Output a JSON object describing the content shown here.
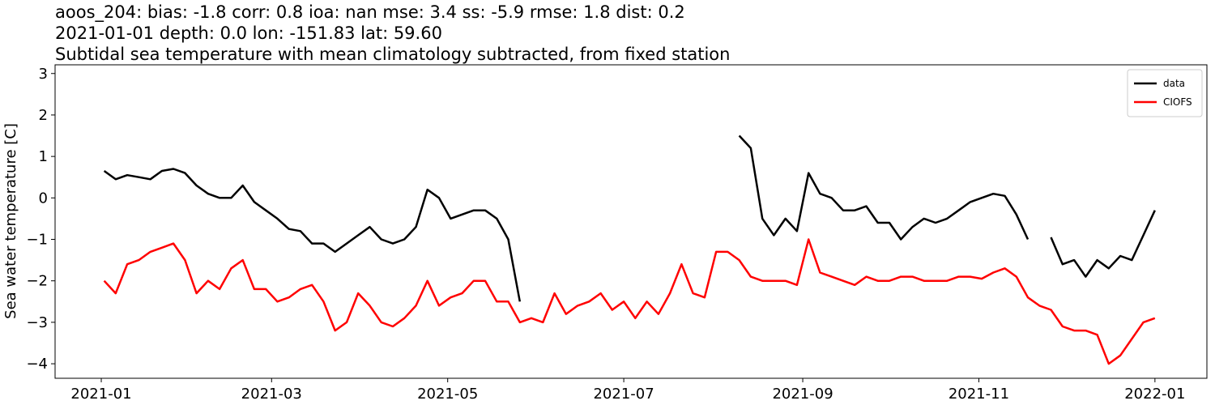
{
  "chart_data": {
    "type": "line",
    "title": "aoos_204: bias: -1.8  corr: 0.8  ioa: nan  mse: 3.4  ss: -5.9  rmse: 1.8  dist: 0.2",
    "subtitle": "2021-01-01 depth: 0.0 lon: -151.83 lat: 59.60",
    "description": "Subtidal sea temperature with mean climatology subtracted, from fixed station",
    "ylabel": "Sea water temperature [C]",
    "legend": "upper right",
    "x": [
      1,
      5,
      9,
      13,
      17,
      21,
      25,
      29,
      33,
      37,
      41,
      45,
      49,
      53,
      57,
      61,
      65,
      69,
      73,
      77,
      81,
      85,
      89,
      93,
      97,
      101,
      105,
      109,
      113,
      117,
      121,
      125,
      129,
      133,
      137,
      141,
      145,
      149,
      153,
      157,
      161,
      165,
      169,
      173,
      177,
      181,
      185,
      189,
      193,
      197,
      201,
      205,
      209,
      213,
      217,
      221,
      225,
      229,
      233,
      237,
      241,
      245,
      249,
      253,
      257,
      261,
      265,
      269,
      273,
      277,
      281,
      285,
      289,
      293,
      297,
      301,
      305,
      309,
      313,
      317,
      321,
      325,
      329,
      333,
      337,
      341,
      345,
      349,
      353,
      357,
      361,
      365
    ],
    "series": [
      {
        "name": "data",
        "color": "#000000",
        "values": [
          0.65,
          0.45,
          0.55,
          0.5,
          0.45,
          0.65,
          0.7,
          0.6,
          0.3,
          0.1,
          0.0,
          0.0,
          0.3,
          -0.1,
          -0.3,
          -0.5,
          -0.75,
          -0.8,
          -1.1,
          -1.1,
          -1.3,
          -1.1,
          -0.9,
          -0.7,
          -1.0,
          -1.1,
          -1.0,
          -0.7,
          0.2,
          0.0,
          -0.5,
          -0.4,
          -0.3,
          -0.3,
          -0.5,
          -1.0,
          -2.5,
          null,
          null,
          null,
          null,
          null,
          null,
          null,
          null,
          null,
          null,
          null,
          null,
          null,
          null,
          null,
          null,
          null,
          null,
          1.5,
          1.2,
          -0.5,
          -0.9,
          -0.5,
          -0.8,
          0.6,
          0.1,
          0.0,
          -0.3,
          -0.3,
          -0.2,
          -0.6,
          -0.6,
          -1.0,
          -0.7,
          -0.5,
          -0.6,
          -0.5,
          -0.3,
          -0.1,
          0.0,
          0.1,
          0.05,
          -0.4,
          -1.0,
          null,
          -0.95,
          -1.6,
          -1.5,
          -1.9,
          -1.5,
          -1.7,
          -1.4,
          -1.5,
          -0.9,
          -0.3
        ]
      },
      {
        "name": "CIOFS",
        "color": "#ff0000",
        "values": [
          -2.0,
          -2.3,
          -1.6,
          -1.5,
          -1.3,
          -1.2,
          -1.1,
          -1.5,
          -2.3,
          -2.0,
          -2.2,
          -1.7,
          -1.5,
          -2.2,
          -2.2,
          -2.5,
          -2.4,
          -2.2,
          -2.1,
          -2.5,
          -3.2,
          -3.0,
          -2.3,
          -2.6,
          -3.0,
          -3.1,
          -2.9,
          -2.6,
          -2.0,
          -2.6,
          -2.4,
          -2.3,
          -2.0,
          -2.0,
          -2.5,
          -2.5,
          -3.0,
          -2.9,
          -3.0,
          -2.3,
          -2.8,
          -2.6,
          -2.5,
          -2.3,
          -2.7,
          -2.5,
          -2.9,
          -2.5,
          -2.8,
          -2.3,
          -1.6,
          -2.3,
          -2.4,
          -1.3,
          -1.3,
          -1.5,
          -1.9,
          -2.0,
          -2.0,
          -2.0,
          -2.1,
          -1.0,
          -1.8,
          -1.9,
          -2.0,
          -2.1,
          -1.9,
          -2.0,
          -2.0,
          -1.9,
          -1.9,
          -2.0,
          -2.0,
          -2.0,
          -1.9,
          -1.9,
          -1.95,
          -1.8,
          -1.7,
          -1.9,
          -2.4,
          -2.6,
          -2.7,
          -3.1,
          -3.2,
          -3.2,
          -3.3,
          -4.0,
          -3.8,
          -3.4,
          -3.0,
          -2.9
        ]
      }
    ],
    "xlim": [
      -16,
      383
    ],
    "xticks": [
      {
        "value": 0,
        "label": "2021-01"
      },
      {
        "value": 59,
        "label": "2021-03"
      },
      {
        "value": 120,
        "label": "2021-05"
      },
      {
        "value": 181,
        "label": "2021-07"
      },
      {
        "value": 243,
        "label": "2021-09"
      },
      {
        "value": 304,
        "label": "2021-11"
      },
      {
        "value": 365,
        "label": "2022-01"
      }
    ],
    "ylim": [
      -4.35,
      3.21
    ],
    "yticks": [
      {
        "value": 3,
        "label": "3"
      },
      {
        "value": 2,
        "label": "2"
      },
      {
        "value": 1,
        "label": "1"
      },
      {
        "value": 0,
        "label": "0"
      },
      {
        "value": -1,
        "label": "−1"
      },
      {
        "value": -2,
        "label": "−2"
      },
      {
        "value": -3,
        "label": "−3"
      },
      {
        "value": -4,
        "label": "−4"
      }
    ],
    "grid": false
  }
}
